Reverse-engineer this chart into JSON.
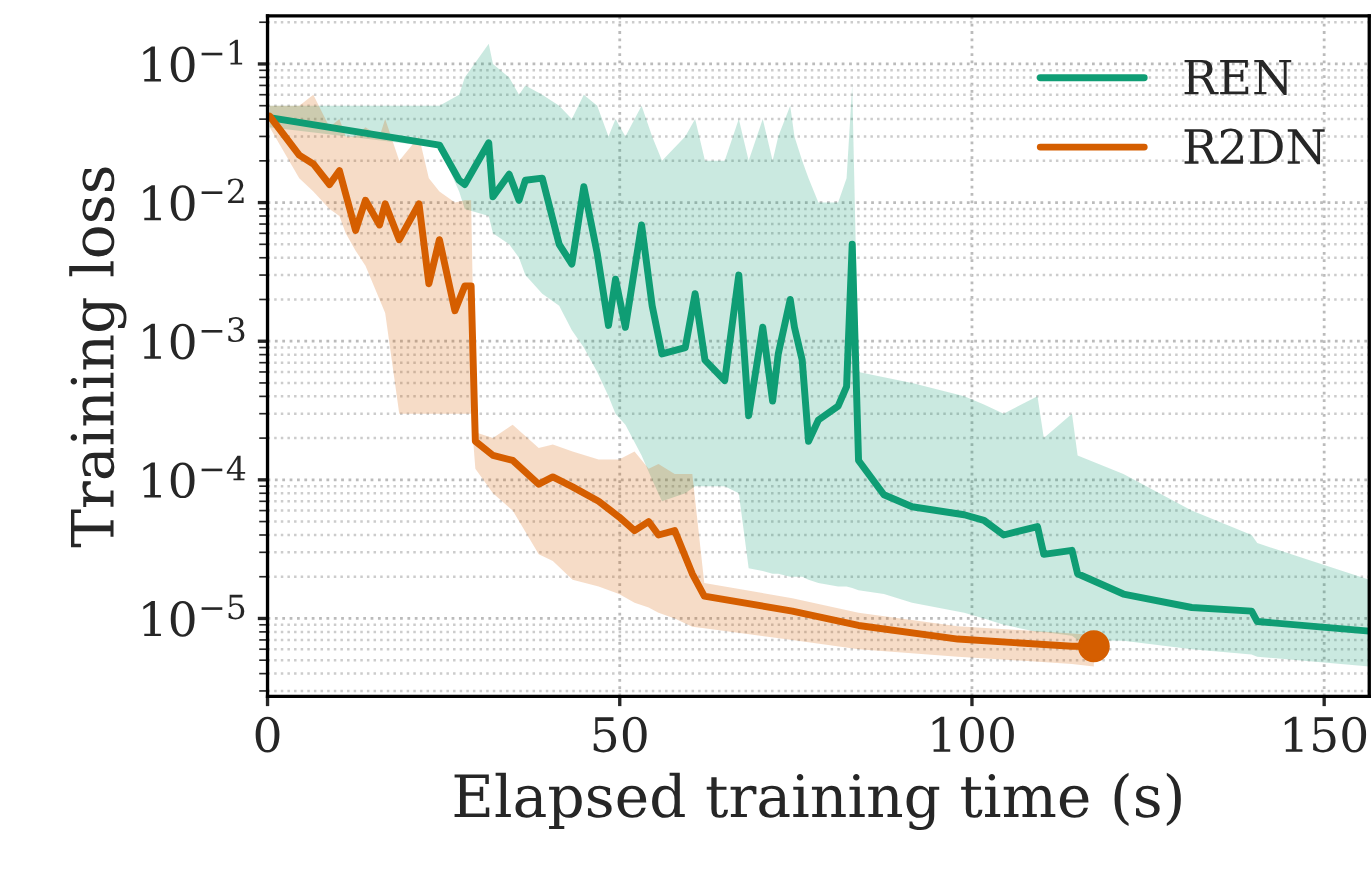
{
  "chart_data": {
    "type": "line",
    "xlabel": "Elapsed training time (s)",
    "ylabel": "Training loss",
    "log": "y",
    "grid": true,
    "legend": "top right",
    "xlim": [
      0,
      156.4
    ],
    "xticks": [
      0,
      50,
      100,
      150
    ],
    "ylim": [
      2.74e-06,
      0.222
    ],
    "yticks": [
      {
        "value": 1e-05,
        "label": "10$^{−5}$"
      },
      {
        "value": 0.0001,
        "label": "10$^{−4}$"
      },
      {
        "value": 0.001,
        "label": "10$^{−3}$"
      },
      {
        "value": 0.01,
        "label": "10$^{−2}$"
      },
      {
        "value": 0.1,
        "label": "10$^{−1}$"
      }
    ],
    "series": [
      {
        "name": "REN",
        "color": "#0f9d74",
        "x": [
          0.3,
          24.4,
          27.2,
          28,
          31.4,
          32,
          34.3,
          35.7,
          36.6,
          39,
          41.4,
          43.2,
          44.9,
          46.8,
          48.4,
          49.4,
          50.8,
          53.1,
          54.6,
          56,
          59.3,
          60.7,
          62.1,
          64.9,
          66.9,
          68.3,
          70.3,
          71.7,
          72.5,
          74.2,
          74.8,
          75.9,
          76.8,
          78.2,
          81,
          82.2,
          83,
          83.9,
          87.5,
          91.5,
          98.9,
          101.7,
          104.5,
          109.3,
          110.2,
          114.2,
          115,
          121.5,
          131.2,
          139.7,
          140.5,
          156.4
        ],
        "values": [
          0.041,
          0.026,
          0.0145,
          0.0135,
          0.027,
          0.011,
          0.016,
          0.0104,
          0.0145,
          0.015,
          0.005,
          0.0036,
          0.013,
          0.0043,
          0.0013,
          0.0028,
          0.00126,
          0.0069,
          0.0018,
          0.00081,
          0.0009,
          0.0022,
          0.00073,
          0.00052,
          0.003,
          0.00029,
          0.00126,
          0.00037,
          0.00081,
          0.002,
          0.00126,
          0.00073,
          0.00019,
          0.00027,
          0.00034,
          0.00047,
          0.005,
          0.000138,
          7.8e-05,
          6.4e-05,
          5.6e-05,
          5.1e-05,
          4e-05,
          4.6e-05,
          2.9e-05,
          3.1e-05,
          2.1e-05,
          1.5e-05,
          1.2e-05,
          1.13e-05,
          9.5e-06,
          8.1e-06
        ],
        "lower": [
          0.035,
          0.025,
          0.012,
          0.009,
          0.008,
          0.006,
          0.005,
          0.004,
          0.003,
          0.0022,
          0.0018,
          0.0012,
          0.0009,
          0.0006,
          0.0004,
          0.0003,
          0.00025,
          0.00015,
          0.0001,
          7e-05,
          8e-05,
          9e-05,
          9e-05,
          9e-05,
          8e-05,
          2.3e-05,
          2.2e-05,
          2.1e-05,
          2.1e-05,
          2e-05,
          2e-05,
          2e-05,
          1.9e-05,
          1.8e-05,
          1.7e-05,
          1.7e-05,
          1.66e-05,
          1.6e-05,
          1.5e-05,
          1.3e-05,
          1.1e-05,
          1e-05,
          9e-06,
          8e-06,
          8e-06,
          7.5e-06,
          7e-06,
          6.9e-06,
          6e-06,
          5.5e-06,
          5.3e-06,
          4.5e-06
        ],
        "upper": [
          0.05,
          0.05,
          0.06,
          0.08,
          0.14,
          0.1,
          0.08,
          0.06,
          0.07,
          0.06,
          0.05,
          0.04,
          0.06,
          0.05,
          0.03,
          0.04,
          0.03,
          0.05,
          0.03,
          0.02,
          0.03,
          0.04,
          0.02,
          0.02,
          0.04,
          0.02,
          0.04,
          0.02,
          0.03,
          0.05,
          0.03,
          0.02,
          0.015,
          0.01,
          0.01,
          0.015,
          0.07,
          0.0006,
          0.00055,
          0.0005,
          0.0004,
          0.00035,
          0.0003,
          0.0004,
          0.0002,
          0.0003,
          0.00015,
          0.00011,
          6e-05,
          4e-05,
          3.5e-05,
          1.9e-05
        ]
      },
      {
        "name": "R2DN",
        "color": "#d55e00",
        "x": [
          0.3,
          4.5,
          6.5,
          8.8,
          10.2,
          11.1,
          12.5,
          13.9,
          15.9,
          16.7,
          18.7,
          21.5,
          22.9,
          24.4,
          26.6,
          28,
          28.9,
          29.5,
          32,
          34.8,
          38.5,
          40.5,
          43.3,
          47,
          49.9,
          52.1,
          54.1,
          55.5,
          57.8,
          60.3,
          62,
          74.5,
          83.9,
          98,
          114.2,
          117.3
        ],
        "values": [
          0.042,
          0.022,
          0.019,
          0.0135,
          0.017,
          0.0115,
          0.0063,
          0.0104,
          0.0069,
          0.0098,
          0.0054,
          0.0098,
          0.0026,
          0.0054,
          0.00166,
          0.0025,
          0.0025,
          0.00019,
          0.00015,
          0.000138,
          9.3e-05,
          0.000105,
          8.9e-05,
          7e-05,
          5.4e-05,
          4.3e-05,
          5e-05,
          4e-05,
          4.3e-05,
          2.1e-05,
          1.45e-05,
          1.13e-05,
          8.9e-06,
          7.1e-06,
          6.3e-06,
          6.3e-06
        ],
        "lower": [
          0.035,
          0.015,
          0.012,
          0.009,
          0.008,
          0.006,
          0.0045,
          0.0035,
          0.002,
          0.0016,
          0.0003,
          0.0003,
          0.0003,
          0.0003,
          0.0003,
          0.0003,
          0.0003,
          0.00012,
          8e-05,
          6e-05,
          2.9e-05,
          2.6e-05,
          1.9e-05,
          1.7e-05,
          1.5e-05,
          1.3e-05,
          1.2e-05,
          1.1e-05,
          1e-05,
          8.7e-06,
          8.5e-06,
          7e-06,
          6e-06,
          5.3e-06,
          4.7e-06,
          4.5e-06
        ],
        "upper": [
          0.05,
          0.05,
          0.06,
          0.035,
          0.04,
          0.03,
          0.03,
          0.035,
          0.03,
          0.04,
          0.02,
          0.03,
          0.015,
          0.012,
          0.01,
          0.0104,
          0.0104,
          0.00022,
          0.0002,
          0.00025,
          0.00017,
          0.00018,
          0.00016,
          0.00014,
          0.00014,
          0.00016,
          0.00012,
          0.00013,
          0.00011,
          0.00011,
          1.8e-05,
          1.4e-05,
          1.1e-05,
          8.8e-06,
          7.8e-06,
          7.6e-06
        ]
      },
      {
        "type": "scatter",
        "color": "#d55e00",
        "marker": "circle",
        "x": [
          117.3
        ],
        "values": [
          6.3e-06
        ]
      }
    ]
  }
}
